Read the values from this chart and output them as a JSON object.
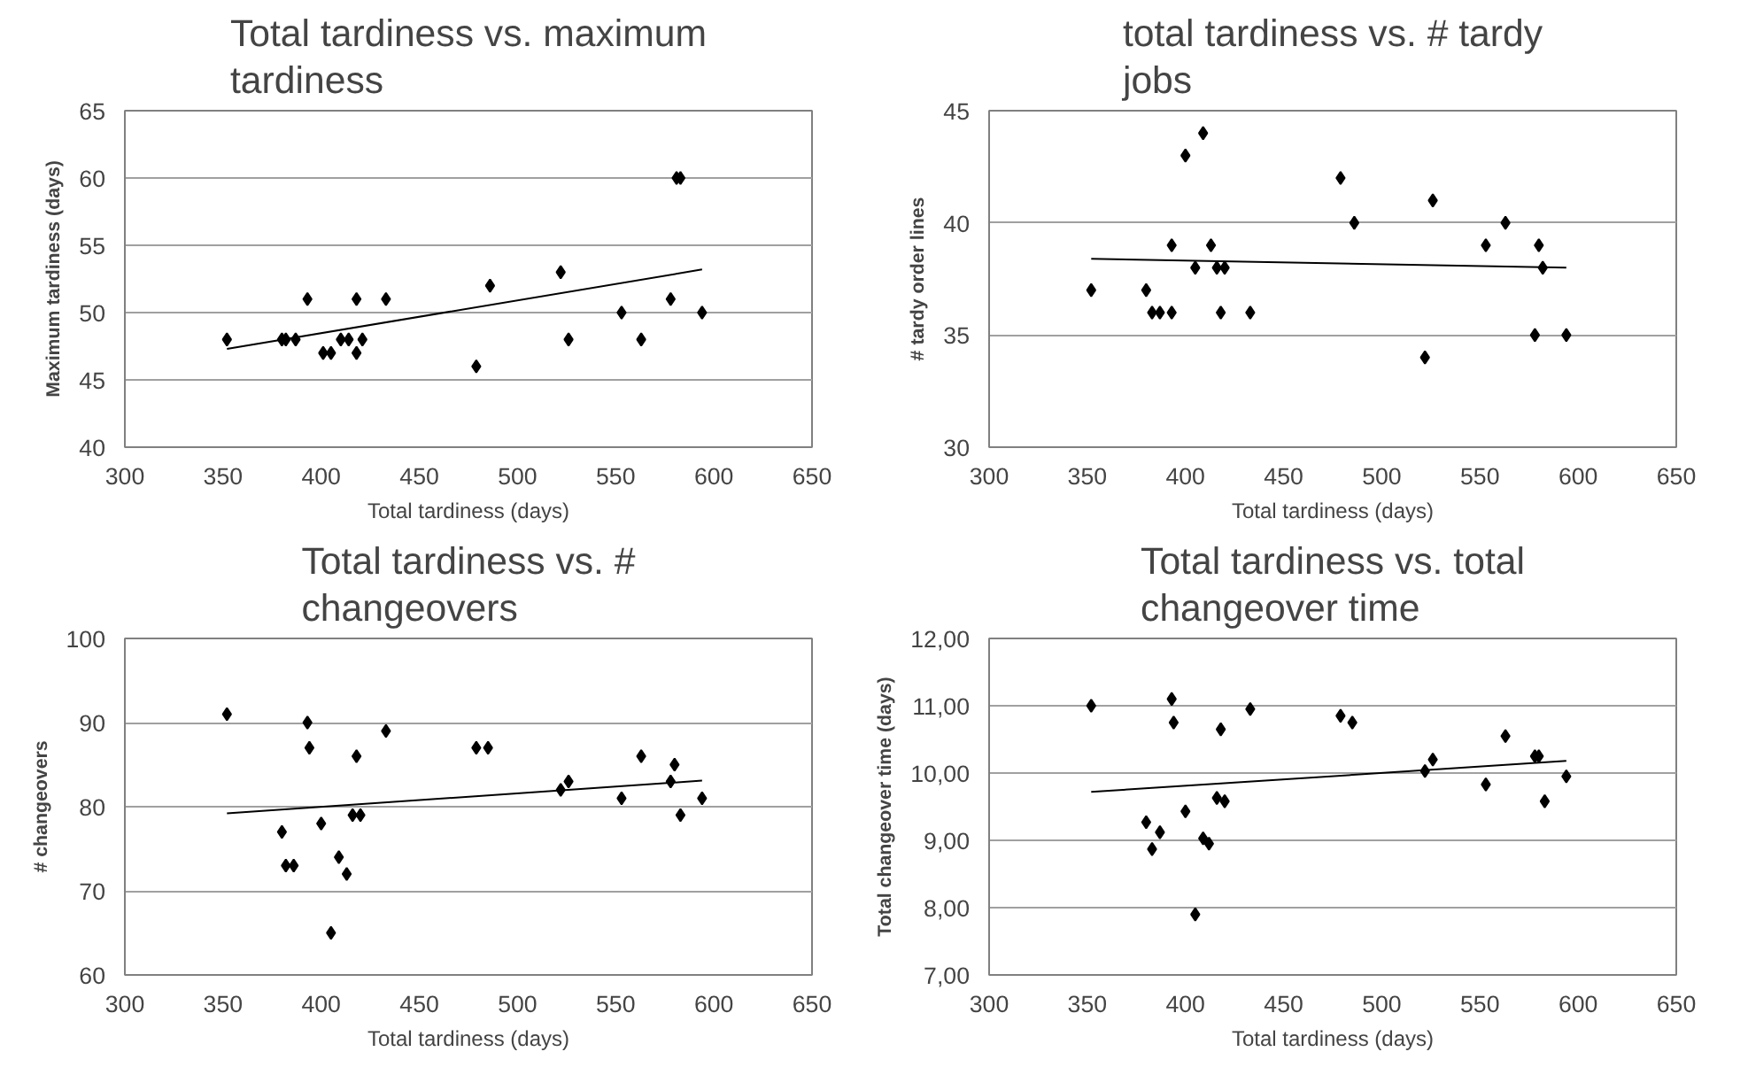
{
  "chart_data": [
    {
      "type": "scatter",
      "title": "Total tardiness vs. maximum tardiness",
      "xlabel": "Total tardiness (days)",
      "ylabel": "Maximum tardiness (days)",
      "xlim": [
        300,
        650
      ],
      "xticks": [
        300,
        350,
        400,
        450,
        500,
        550,
        600,
        650
      ],
      "ylim": [
        40,
        65
      ],
      "yticks": [
        40,
        45,
        50,
        55,
        60,
        65
      ],
      "grid": "y",
      "marker": "diamond",
      "series": [
        {
          "color": "#000000",
          "x": [
            352,
            380,
            382,
            387,
            393,
            401,
            405,
            410,
            414,
            418,
            418,
            421,
            433,
            479,
            486,
            522,
            526,
            553,
            563,
            578,
            581,
            583,
            594
          ],
          "values": [
            48,
            48,
            48,
            48,
            51,
            47,
            47,
            48,
            48,
            51,
            47,
            48,
            51,
            46,
            52,
            53,
            48,
            50,
            48,
            51,
            60,
            60,
            50
          ]
        },
        {
          "type": "line",
          "marker": "none",
          "color": "#000000",
          "x": [
            352,
            594
          ],
          "values": [
            47.3,
            53.2
          ]
        }
      ]
    },
    {
      "type": "scatter",
      "title": "total tardiness vs. # tardy jobs",
      "xlabel": "Total tardiness (days)",
      "ylabel": "# tardy order lines",
      "xlim": [
        300,
        650
      ],
      "xticks": [
        300,
        350,
        400,
        450,
        500,
        550,
        600,
        650
      ],
      "ylim": [
        30,
        45
      ],
      "yticks": [
        30,
        35,
        40,
        45
      ],
      "grid": "y",
      "marker": "diamond",
      "series": [
        {
          "color": "#000000",
          "x": [
            352,
            380,
            383,
            387,
            393,
            393,
            400,
            405,
            409,
            413,
            416,
            418,
            420,
            433,
            479,
            486,
            522,
            526,
            553,
            563,
            578,
            580,
            582,
            594
          ],
          "values": [
            37,
            37,
            36,
            36,
            36,
            39,
            43,
            38,
            44,
            39,
            38,
            36,
            38,
            36,
            42,
            40,
            34,
            41,
            39,
            40,
            35,
            39,
            38,
            35
          ]
        },
        {
          "type": "line",
          "marker": "none",
          "color": "#000000",
          "x": [
            352,
            594
          ],
          "values": [
            38.4,
            38.0
          ]
        }
      ]
    },
    {
      "type": "scatter",
      "title": "Total tardiness vs. # changeovers",
      "xlabel": "Total tardiness (days)",
      "ylabel": "# changeovers",
      "xlim": [
        300,
        650
      ],
      "xticks": [
        300,
        350,
        400,
        450,
        500,
        550,
        600,
        650
      ],
      "ylim": [
        60,
        100
      ],
      "yticks": [
        60,
        70,
        80,
        90,
        100
      ],
      "grid": "y",
      "marker": "diamond",
      "series": [
        {
          "color": "#000000",
          "x": [
            352,
            380,
            382,
            386,
            393,
            394,
            400,
            405,
            409,
            413,
            416,
            418,
            420,
            433,
            479,
            485,
            522,
            526,
            553,
            563,
            578,
            580,
            583,
            594
          ],
          "values": [
            91,
            77,
            73,
            73,
            90,
            87,
            78,
            65,
            74,
            72,
            79,
            86,
            79,
            89,
            87,
            87,
            82,
            83,
            81,
            86,
            83,
            85,
            79,
            81
          ]
        },
        {
          "type": "line",
          "marker": "none",
          "color": "#000000",
          "x": [
            352,
            594
          ],
          "values": [
            79.2,
            83.1
          ]
        }
      ]
    },
    {
      "type": "scatter",
      "title": "Total tardiness vs. total changeover time",
      "xlabel": "Total tardiness (days)",
      "ylabel": "Total changeover time (days)",
      "xlim": [
        300,
        650
      ],
      "xticks": [
        300,
        350,
        400,
        450,
        500,
        550,
        600,
        650
      ],
      "ylim": [
        7,
        12
      ],
      "yticks": [
        {
          "value": 7,
          "label": "7,00"
        },
        {
          "value": 8,
          "label": "8,00"
        },
        {
          "value": 9,
          "label": "9,00"
        },
        {
          "value": 10,
          "label": "10,00"
        },
        {
          "value": 11,
          "label": "11,00"
        },
        {
          "value": 12,
          "label": "12,00"
        }
      ],
      "grid": "y",
      "marker": "diamond",
      "series": [
        {
          "color": "#000000",
          "x": [
            352,
            380,
            383,
            387,
            393,
            394,
            400,
            405,
            409,
            412,
            416,
            418,
            420,
            433,
            479,
            485,
            522,
            526,
            553,
            563,
            578,
            580,
            583,
            594
          ],
          "values": [
            11.0,
            9.27,
            8.87,
            9.12,
            11.1,
            10.75,
            9.43,
            7.9,
            9.03,
            8.95,
            9.63,
            10.65,
            9.58,
            10.95,
            10.85,
            10.75,
            10.03,
            10.2,
            9.83,
            10.55,
            10.25,
            10.25,
            9.58,
            9.95
          ]
        },
        {
          "type": "line",
          "marker": "none",
          "color": "#000000",
          "x": [
            352,
            594
          ],
          "values": [
            9.72,
            10.18
          ]
        }
      ]
    }
  ]
}
